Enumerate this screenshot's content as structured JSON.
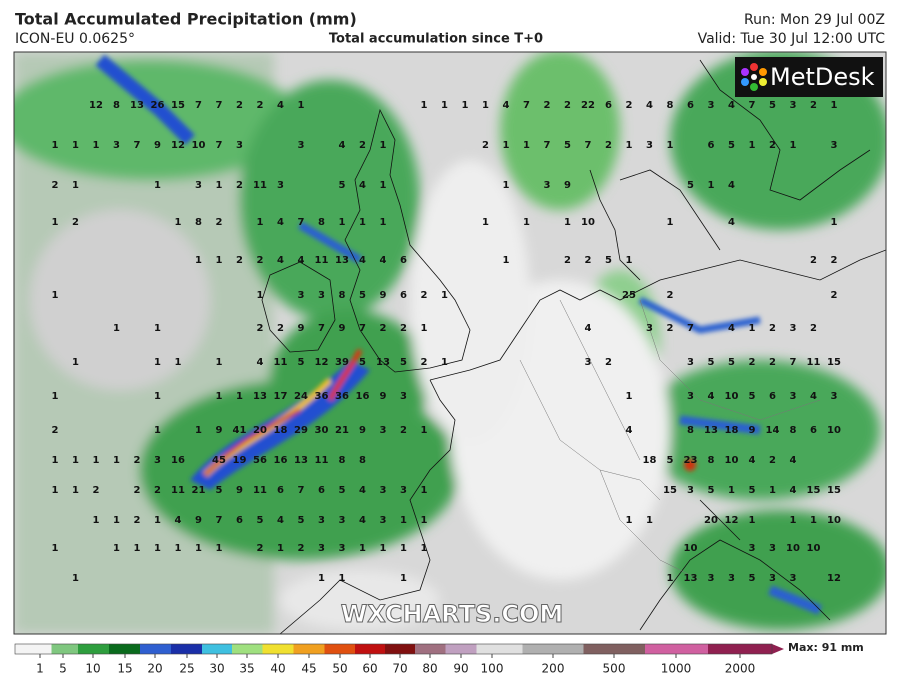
{
  "header": {
    "title": "Total Accumulated Precipitation (mm)",
    "model": "ICON-EU 0.0625°",
    "subtitle": "Total accumulation since T+0",
    "run": "Run: Mon 29 Jul 00Z",
    "valid": "Valid: Tue 30 Jul 12:00 UTC"
  },
  "logo": "MetDesk",
  "watermark": "WXCHARTS.COM",
  "map_labels": [
    [
      null,
      null,
      12,
      8,
      13,
      26,
      15,
      7,
      7,
      2,
      2,
      4,
      1,
      null,
      null,
      null,
      null,
      null,
      1,
      1,
      1,
      1,
      4,
      7,
      2,
      2,
      22,
      6,
      2,
      4,
      8,
      6,
      3,
      4,
      7,
      5,
      3,
      2,
      1
    ],
    [
      1,
      1,
      1,
      3,
      7,
      9,
      12,
      10,
      7,
      3,
      null,
      null,
      3,
      null,
      4,
      2,
      1,
      null,
      null,
      null,
      null,
      2,
      1,
      1,
      7,
      5,
      7,
      2,
      1,
      3,
      1,
      null,
      6,
      5,
      1,
      2,
      1,
      null,
      3
    ],
    [
      2,
      1,
      null,
      null,
      null,
      1,
      null,
      3,
      1,
      2,
      11,
      3,
      null,
      null,
      5,
      4,
      1,
      null,
      null,
      null,
      null,
      null,
      1,
      null,
      3,
      9,
      null,
      null,
      null,
      null,
      null,
      5,
      1,
      4,
      null,
      null,
      null,
      null,
      null
    ],
    [
      1,
      2,
      null,
      null,
      null,
      null,
      1,
      8,
      2,
      null,
      1,
      4,
      7,
      8,
      1,
      1,
      1,
      null,
      null,
      null,
      null,
      1,
      null,
      1,
      null,
      1,
      10,
      null,
      null,
      null,
      1,
      null,
      null,
      4,
      null,
      null,
      null,
      null,
      1
    ],
    [
      null,
      null,
      null,
      null,
      null,
      null,
      null,
      1,
      1,
      2,
      2,
      4,
      4,
      11,
      13,
      4,
      4,
      6,
      null,
      null,
      null,
      null,
      1,
      null,
      null,
      2,
      2,
      5,
      1,
      null,
      null,
      null,
      null,
      null,
      null,
      null,
      null,
      2,
      2
    ],
    [
      1,
      null,
      null,
      null,
      null,
      null,
      null,
      null,
      null,
      null,
      1,
      null,
      3,
      3,
      8,
      5,
      9,
      6,
      2,
      1,
      null,
      null,
      null,
      null,
      null,
      null,
      null,
      null,
      25,
      null,
      2,
      null,
      null,
      null,
      null,
      null,
      null,
      null,
      2
    ],
    [
      null,
      null,
      null,
      1,
      null,
      1,
      null,
      null,
      null,
      null,
      2,
      2,
      9,
      7,
      9,
      7,
      2,
      2,
      1,
      null,
      null,
      null,
      null,
      null,
      null,
      null,
      4,
      null,
      null,
      3,
      2,
      7,
      null,
      4,
      1,
      2,
      3,
      2,
      null
    ],
    [
      null,
      1,
      null,
      null,
      null,
      1,
      1,
      null,
      1,
      null,
      4,
      11,
      5,
      12,
      39,
      5,
      13,
      5,
      2,
      1,
      null,
      null,
      null,
      null,
      null,
      null,
      3,
      2,
      null,
      null,
      null,
      3,
      5,
      5,
      2,
      2,
      7,
      11,
      15
    ],
    [
      1,
      null,
      null,
      null,
      null,
      1,
      null,
      null,
      1,
      1,
      13,
      17,
      24,
      36,
      36,
      16,
      9,
      3,
      null,
      null,
      null,
      null,
      null,
      null,
      null,
      null,
      null,
      null,
      1,
      null,
      null,
      3,
      4,
      10,
      5,
      6,
      3,
      4,
      3
    ],
    [
      2,
      null,
      null,
      null,
      null,
      1,
      null,
      1,
      9,
      41,
      20,
      18,
      29,
      30,
      21,
      9,
      3,
      2,
      1,
      null,
      null,
      null,
      null,
      null,
      null,
      null,
      null,
      null,
      4,
      null,
      null,
      8,
      13,
      18,
      9,
      14,
      8,
      6,
      10
    ],
    [
      1,
      1,
      1,
      1,
      2,
      3,
      16,
      null,
      45,
      19,
      56,
      16,
      13,
      11,
      8,
      8,
      null,
      null,
      null,
      null,
      null,
      null,
      null,
      null,
      null,
      null,
      null,
      null,
      null,
      18,
      5,
      23,
      8,
      10,
      4,
      2,
      4,
      null,
      null
    ],
    [
      1,
      1,
      2,
      null,
      2,
      2,
      11,
      21,
      5,
      9,
      11,
      6,
      7,
      6,
      5,
      4,
      3,
      3,
      1,
      null,
      null,
      null,
      null,
      null,
      null,
      null,
      null,
      null,
      null,
      null,
      15,
      3,
      5,
      1,
      5,
      1,
      4,
      15,
      15
    ],
    [
      null,
      null,
      1,
      1,
      2,
      1,
      4,
      9,
      7,
      6,
      5,
      4,
      5,
      3,
      3,
      4,
      3,
      1,
      1,
      null,
      null,
      null,
      null,
      null,
      null,
      null,
      null,
      null,
      1,
      1,
      null,
      null,
      20,
      12,
      1,
      null,
      1,
      1,
      10
    ],
    [
      1,
      null,
      null,
      1,
      1,
      1,
      1,
      1,
      1,
      null,
      2,
      1,
      2,
      3,
      3,
      1,
      1,
      1,
      1,
      null,
      null,
      null,
      null,
      null,
      null,
      null,
      null,
      null,
      null,
      null,
      null,
      10,
      null,
      null,
      3,
      3,
      10,
      10,
      null
    ],
    [
      null,
      1,
      null,
      null,
      null,
      null,
      null,
      null,
      null,
      null,
      null,
      null,
      null,
      1,
      1,
      null,
      null,
      1,
      null,
      null,
      null,
      null,
      null,
      null,
      null,
      null,
      null,
      null,
      null,
      null,
      1,
      13,
      3,
      3,
      5,
      3,
      3,
      null,
      12
    ]
  ],
  "colorbar": {
    "ticks": [
      1,
      5,
      10,
      15,
      20,
      25,
      30,
      35,
      40,
      45,
      50,
      60,
      70,
      80,
      90,
      100,
      200,
      500,
      1000,
      2000
    ],
    "colors": [
      "#f4f4f4",
      "#7fc77f",
      "#2e9e3e",
      "#0a6b1d",
      "#2f5fd0",
      "#1a2fa8",
      "#3fc0e0",
      "#9fe07f",
      "#f0e030",
      "#f0a020",
      "#e05010",
      "#c01010",
      "#801010",
      "#a07080",
      "#c0a0c0",
      "#e0e0e0",
      "#b0b0b0",
      "#806060",
      "#d060a0",
      "#902050"
    ],
    "max_label": "Max: 91 mm"
  }
}
